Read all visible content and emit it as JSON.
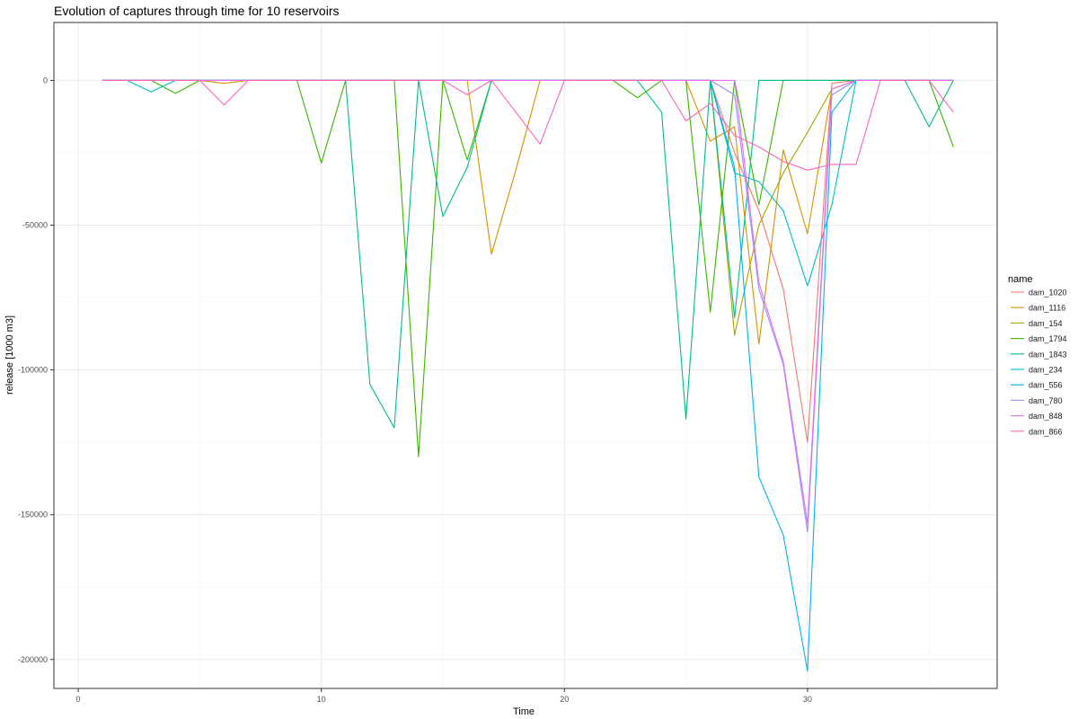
{
  "chart_data": {
    "type": "line",
    "title": "Evolution of captures through time for 10 reservoirs",
    "xlabel": "Time",
    "ylabel": "release [1000 m3]",
    "xlim": [
      -1,
      37.8
    ],
    "ylim": [
      -210000,
      20000
    ],
    "x_ticks": [
      0,
      10,
      20,
      30
    ],
    "x_tick_labels": [
      "0",
      "10",
      "20",
      "30"
    ],
    "y_ticks": [
      0,
      -50000,
      -100000,
      -150000,
      -200000
    ],
    "y_tick_labels": [
      "0",
      "-50000",
      "-100000",
      "-150000",
      "-200000"
    ],
    "grid": true,
    "legend_position": "right",
    "legend_title": "name",
    "series": [
      {
        "name": "dam_1020",
        "color": "#F8766D",
        "points": [
          [
            1,
            0
          ],
          [
            7,
            0
          ],
          [
            26,
            0
          ],
          [
            27,
            -25000
          ],
          [
            28,
            -45000
          ],
          [
            29,
            -72000
          ],
          [
            30,
            -125000
          ],
          [
            31,
            -1000
          ],
          [
            32,
            0
          ],
          [
            36,
            0
          ]
        ]
      },
      {
        "name": "dam_1116",
        "color": "#D89000",
        "points": [
          [
            1,
            0
          ],
          [
            5,
            0
          ],
          [
            6,
            -1000
          ],
          [
            7,
            0
          ],
          [
            15,
            0
          ],
          [
            16,
            0
          ],
          [
            17,
            -60000
          ],
          [
            18,
            -31000
          ],
          [
            19,
            0
          ],
          [
            25,
            0
          ],
          [
            26,
            -21000
          ],
          [
            27,
            -16000
          ],
          [
            28,
            -91000
          ],
          [
            29,
            -24000
          ],
          [
            30,
            -53000
          ],
          [
            31,
            -3000
          ],
          [
            32,
            0
          ],
          [
            36,
            0
          ]
        ]
      },
      {
        "name": "dam_154",
        "color": "#A3A500",
        "points": [
          [
            1,
            0
          ],
          [
            25,
            0
          ],
          [
            26,
            0
          ],
          [
            27,
            -88000
          ],
          [
            28,
            -50000
          ],
          [
            29,
            -32000
          ],
          [
            30,
            -18000
          ],
          [
            31,
            -3000
          ],
          [
            32,
            0
          ],
          [
            36,
            0
          ]
        ]
      },
      {
        "name": "dam_1794",
        "color": "#39B600",
        "points": [
          [
            1,
            0
          ],
          [
            3,
            0
          ],
          [
            4,
            -4500
          ],
          [
            5,
            0
          ],
          [
            9,
            0
          ],
          [
            10,
            -28500
          ],
          [
            11,
            0
          ],
          [
            13,
            0
          ],
          [
            14,
            -130000
          ],
          [
            15,
            0
          ],
          [
            16,
            -27500
          ],
          [
            17,
            0
          ],
          [
            22,
            0
          ],
          [
            23,
            -6000
          ],
          [
            24,
            0
          ],
          [
            25,
            0
          ],
          [
            26,
            -80000
          ],
          [
            27,
            0
          ],
          [
            28,
            -43000
          ],
          [
            29,
            0
          ],
          [
            35,
            0
          ],
          [
            36,
            -23000
          ]
        ]
      },
      {
        "name": "dam_1843",
        "color": "#00BF7D",
        "points": [
          [
            1,
            0
          ],
          [
            9,
            0
          ],
          [
            10,
            0
          ],
          [
            11,
            0
          ],
          [
            12,
            -105000
          ],
          [
            13,
            -120000
          ],
          [
            14,
            0
          ],
          [
            15,
            -47000
          ],
          [
            16,
            -30000
          ],
          [
            17,
            0
          ],
          [
            23,
            0
          ],
          [
            24,
            -11000
          ],
          [
            25,
            -117000
          ],
          [
            26,
            0
          ],
          [
            27,
            -82000
          ],
          [
            28,
            0
          ],
          [
            33,
            0
          ],
          [
            34,
            0
          ],
          [
            35,
            -16000
          ],
          [
            36,
            0
          ]
        ]
      },
      {
        "name": "dam_234",
        "color": "#00BFC4",
        "points": [
          [
            1,
            0
          ],
          [
            2,
            0
          ],
          [
            3,
            -4000
          ],
          [
            4,
            0
          ],
          [
            25,
            0
          ],
          [
            26,
            0
          ],
          [
            27,
            -32000
          ],
          [
            28,
            -35000
          ],
          [
            29,
            -45000
          ],
          [
            30,
            -71000
          ],
          [
            31,
            -43000
          ],
          [
            32,
            0
          ],
          [
            36,
            0
          ]
        ]
      },
      {
        "name": "dam_556",
        "color": "#00B0F6",
        "points": [
          [
            1,
            0
          ],
          [
            25,
            0
          ],
          [
            26,
            0
          ],
          [
            27,
            -30000
          ],
          [
            28,
            -137000
          ],
          [
            29,
            -157000
          ],
          [
            30,
            -204000
          ],
          [
            31,
            -11000
          ],
          [
            32,
            0
          ],
          [
            36,
            0
          ]
        ]
      },
      {
        "name": "dam_780",
        "color": "#9590FF",
        "points": [
          [
            1,
            0
          ],
          [
            26,
            0
          ],
          [
            27,
            -5000
          ],
          [
            28,
            -72000
          ],
          [
            29,
            -98000
          ],
          [
            30,
            -156000
          ],
          [
            31,
            -5000
          ],
          [
            32,
            0
          ],
          [
            36,
            0
          ]
        ]
      },
      {
        "name": "dam_848",
        "color": "#E76BF3",
        "points": [
          [
            1,
            0
          ],
          [
            27,
            0
          ],
          [
            28,
            -70000
          ],
          [
            29,
            -97000
          ],
          [
            30,
            -153000
          ],
          [
            31,
            -3000
          ],
          [
            32,
            0
          ],
          [
            36,
            0
          ]
        ]
      },
      {
        "name": "dam_866",
        "color": "#FF62BC",
        "points": [
          [
            1,
            0
          ],
          [
            5,
            0
          ],
          [
            6,
            -8500
          ],
          [
            7,
            0
          ],
          [
            15,
            0
          ],
          [
            16,
            -5000
          ],
          [
            17,
            0
          ],
          [
            18,
            -11000
          ],
          [
            19,
            -22000
          ],
          [
            20,
            0
          ],
          [
            24,
            0
          ],
          [
            25,
            -14000
          ],
          [
            26,
            -8000
          ],
          [
            27,
            -19000
          ],
          [
            28,
            -23000
          ],
          [
            29,
            -28000
          ],
          [
            30,
            -31000
          ],
          [
            31,
            -29000
          ],
          [
            32,
            -29000
          ],
          [
            33,
            0
          ],
          [
            35,
            0
          ],
          [
            36,
            -11000
          ]
        ]
      }
    ]
  }
}
